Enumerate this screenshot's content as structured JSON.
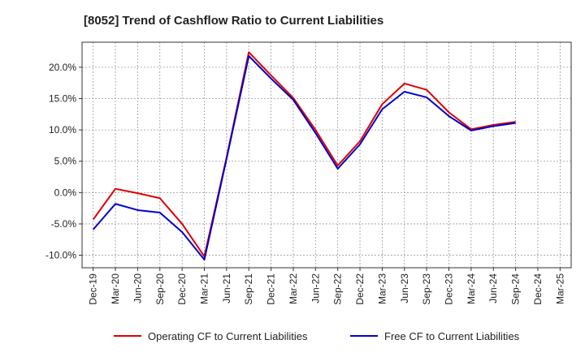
{
  "chart_data": {
    "type": "line",
    "title": "[8052]  Trend of Cashflow Ratio to Current Liabilities",
    "xlabel": "",
    "ylabel": "",
    "x": [
      "Dec-19",
      "Mar-20",
      "Jun-20",
      "Sep-20",
      "Dec-20",
      "Mar-21",
      "Jun-21",
      "Sep-21",
      "Dec-21",
      "Mar-22",
      "Jun-22",
      "Sep-22",
      "Dec-22",
      "Mar-23",
      "Jun-23",
      "Sep-23",
      "Dec-23",
      "Mar-24",
      "Jun-24",
      "Sep-24",
      "Dec-24",
      "Mar-25"
    ],
    "x_tick_labels": [
      "Dec-19",
      "Mar-20",
      "Jun-20",
      "Sep-20",
      "Dec-20",
      "Mar-21",
      "Jun-21",
      "Sep-21",
      "Dec-21",
      "Mar-22",
      "Jun-22",
      "Sep-22",
      "Dec-22",
      "Mar-23",
      "Jun-23",
      "Sep-23",
      "Dec-23",
      "Mar-24",
      "Jun-24",
      "Sep-24",
      "Dec-24",
      "Mar-25"
    ],
    "y_tick_values": [
      -10,
      -5,
      0,
      5,
      10,
      15,
      20
    ],
    "y_tick_labels": [
      "-10.0%",
      "-5.0%",
      "0.0%",
      "5.0%",
      "10.0%",
      "15.0%",
      "20.0%"
    ],
    "ylim": [
      -12,
      24
    ],
    "grid": true,
    "legend_position": "bottom",
    "series": [
      {
        "name": "Operating CF to Current Liabilities",
        "color": "#dd0000",
        "values": [
          -4.3,
          0.6,
          -0.1,
          -0.9,
          -5.0,
          -10.2,
          5.6,
          22.4,
          18.7,
          15.1,
          10.0,
          4.3,
          8.2,
          14.1,
          17.4,
          16.4,
          12.8,
          10.1,
          10.8,
          11.3,
          null,
          null
        ]
      },
      {
        "name": "Free CF to Current Liabilities",
        "color": "#0000cc",
        "values": [
          -5.9,
          -1.8,
          -2.8,
          -3.2,
          -6.3,
          -10.7,
          5.4,
          21.8,
          18.2,
          14.8,
          9.5,
          3.8,
          7.7,
          13.3,
          16.1,
          15.2,
          12.2,
          9.9,
          10.6,
          11.1,
          null,
          null
        ]
      }
    ]
  }
}
